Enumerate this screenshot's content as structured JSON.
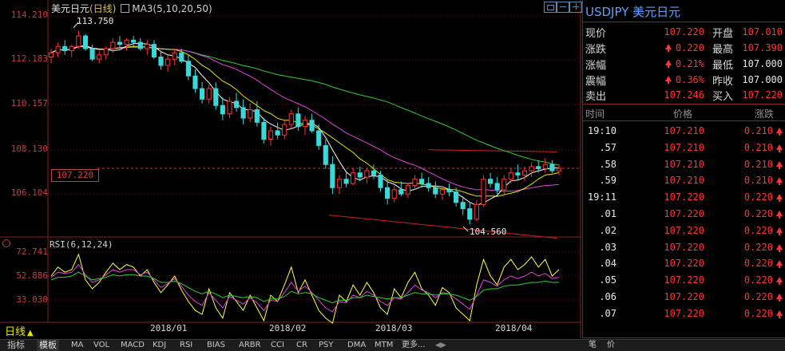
{
  "header": {
    "symbol": "美元日元",
    "period": "(日线)",
    "indicator": "MA3(5,10,20,50)"
  },
  "y_axis": {
    "labels": [
      "114.210",
      "112.183",
      "110.157",
      "108.130",
      "106.104"
    ],
    "rsi_labels": [
      "72.741",
      "52.886",
      "33.030"
    ]
  },
  "x_axis": {
    "labels": [
      "2018/01",
      "2018/02",
      "2018/03",
      "2018/04"
    ]
  },
  "annotations": {
    "high": "113.750",
    "low": "104.560",
    "current_price": "107.220"
  },
  "rsi": {
    "title": "RSI(6,12,24)"
  },
  "period_label": "日线",
  "toolbar": {
    "items": [
      "指标",
      "模板",
      "MA",
      "VOL",
      "MACD",
      "KDJ",
      "RSI",
      "BIAS",
      "ARBR",
      "CCI",
      "CR",
      "PSY",
      "DMA",
      "MTM",
      "更多..."
    ],
    "right_items": [
      "笔",
      "价"
    ]
  },
  "panel": {
    "title": "USDJPY 美元日元",
    "quote": {
      "last_label": "现价",
      "last": "107.220",
      "open_label": "开盘",
      "open": "107.010",
      "change_label": "涨跌",
      "change": "0.220",
      "high_label": "最高",
      "high": "107.390",
      "change_pct_label": "涨幅",
      "change_pct": "0.21%",
      "low_label": "最低",
      "low": "107.000",
      "amplitude_label": "震幅",
      "amplitude": "0.36%",
      "prev_close_label": "昨收",
      "prev_close": "107.000",
      "ask_label": "卖出",
      "ask": "107.246",
      "bid_label": "买入",
      "bid": "107.220"
    },
    "ticks_header": {
      "time": "时间",
      "price": "价格",
      "change": "涨跌"
    },
    "ticks": [
      {
        "time": "19:10",
        "price": "107.210",
        "change": "0.210"
      },
      {
        "time": ".57",
        "price": "107.210",
        "change": "0.210"
      },
      {
        "time": ".58",
        "price": "107.210",
        "change": "0.210"
      },
      {
        "time": ".59",
        "price": "107.210",
        "change": "0.210"
      },
      {
        "time": "19:11",
        "price": "107.220",
        "change": "0.220"
      },
      {
        "time": ".01",
        "price": "107.220",
        "change": "0.220"
      },
      {
        "time": ".02",
        "price": "107.220",
        "change": "0.220"
      },
      {
        "time": ".03",
        "price": "107.220",
        "change": "0.220"
      },
      {
        "time": ".04",
        "price": "107.220",
        "change": "0.220"
      },
      {
        "time": ".05",
        "price": "107.220",
        "change": "0.220"
      },
      {
        "time": ".06",
        "price": "107.220",
        "change": "0.220"
      },
      {
        "time": ".07",
        "price": "107.220",
        "change": "0.220"
      }
    ]
  },
  "colors": {
    "up": "#ff3434",
    "down": "#3ad8d8",
    "ma5": "#ffffff",
    "ma10": "#e8e800",
    "ma20": "#e040e0",
    "ma50": "#30d030",
    "background": "#000000"
  },
  "chart_data": {
    "type": "candlestick",
    "price_range": [
      104.0,
      114.6
    ],
    "rsi_range": [
      20,
      80
    ],
    "candles": [
      [
        112.5,
        112.9,
        112.2,
        112.7
      ],
      [
        112.7,
        113.2,
        112.5,
        113.0
      ],
      [
        113.0,
        113.3,
        112.6,
        112.8
      ],
      [
        112.8,
        113.1,
        112.5,
        113.0
      ],
      [
        113.0,
        113.75,
        112.9,
        113.5
      ],
      [
        113.5,
        113.6,
        112.8,
        112.9
      ],
      [
        112.9,
        113.1,
        112.3,
        112.4
      ],
      [
        112.4,
        112.8,
        112.2,
        112.6
      ],
      [
        112.6,
        113.0,
        112.4,
        112.9
      ],
      [
        112.9,
        113.4,
        112.7,
        113.2
      ],
      [
        113.2,
        113.5,
        112.9,
        113.1
      ],
      [
        113.1,
        113.4,
        112.8,
        113.3
      ],
      [
        113.3,
        113.5,
        113.0,
        113.2
      ],
      [
        113.2,
        113.4,
        112.8,
        112.9
      ],
      [
        112.9,
        113.3,
        112.6,
        113.1
      ],
      [
        113.1,
        113.3,
        112.4,
        112.5
      ],
      [
        112.5,
        112.8,
        111.9,
        112.1
      ],
      [
        112.1,
        112.6,
        111.8,
        112.4
      ],
      [
        112.4,
        112.9,
        112.1,
        112.7
      ],
      [
        112.7,
        112.9,
        112.2,
        112.3
      ],
      [
        112.3,
        112.6,
        111.4,
        111.6
      ],
      [
        111.6,
        111.9,
        110.8,
        111.0
      ],
      [
        111.0,
        111.3,
        110.3,
        110.5
      ],
      [
        110.5,
        111.2,
        110.3,
        111.0
      ],
      [
        111.0,
        111.3,
        110.0,
        110.2
      ],
      [
        110.2,
        110.6,
        109.5,
        109.8
      ],
      [
        109.8,
        110.6,
        109.6,
        110.4
      ],
      [
        110.4,
        110.8,
        109.9,
        110.1
      ],
      [
        110.1,
        110.5,
        109.3,
        109.6
      ],
      [
        109.6,
        110.3,
        109.4,
        110.0
      ],
      [
        110.0,
        110.4,
        109.2,
        109.4
      ],
      [
        109.4,
        109.6,
        108.4,
        108.6
      ],
      [
        108.6,
        109.2,
        108.3,
        109.0
      ],
      [
        109.0,
        109.4,
        108.6,
        108.8
      ],
      [
        108.8,
        109.5,
        108.6,
        109.3
      ],
      [
        109.3,
        110.0,
        109.1,
        109.8
      ],
      [
        109.8,
        110.1,
        109.0,
        109.2
      ],
      [
        109.2,
        109.7,
        108.8,
        109.5
      ],
      [
        109.5,
        109.8,
        108.9,
        109.0
      ],
      [
        109.0,
        109.3,
        108.1,
        108.3
      ],
      [
        108.3,
        108.6,
        107.2,
        107.4
      ],
      [
        107.4,
        107.8,
        106.0,
        106.3
      ],
      [
        106.3,
        106.9,
        106.0,
        106.7
      ],
      [
        106.7,
        107.1,
        106.3,
        106.5
      ],
      [
        106.5,
        107.2,
        106.4,
        107.0
      ],
      [
        107.0,
        107.3,
        106.6,
        106.8
      ],
      [
        106.8,
        107.2,
        106.5,
        107.1
      ],
      [
        107.1,
        107.4,
        106.7,
        106.9
      ],
      [
        106.9,
        107.1,
        106.1,
        106.3
      ],
      [
        106.3,
        106.7,
        105.5,
        105.8
      ],
      [
        105.8,
        106.4,
        105.6,
        106.2
      ],
      [
        106.2,
        106.6,
        105.9,
        106.0
      ],
      [
        106.0,
        106.5,
        105.8,
        106.4
      ],
      [
        106.4,
        106.9,
        106.2,
        106.7
      ],
      [
        106.7,
        107.0,
        106.3,
        106.5
      ],
      [
        106.5,
        106.8,
        106.1,
        106.3
      ],
      [
        106.3,
        106.6,
        105.8,
        106.0
      ],
      [
        106.0,
        106.4,
        105.7,
        106.2
      ],
      [
        106.2,
        106.5,
        105.9,
        106.1
      ],
      [
        106.1,
        106.3,
        105.4,
        105.6
      ],
      [
        105.6,
        105.9,
        105.0,
        105.3
      ],
      [
        105.3,
        105.6,
        104.56,
        104.8
      ],
      [
        104.8,
        105.7,
        104.7,
        105.5
      ],
      [
        105.5,
        106.9,
        105.4,
        106.7
      ],
      [
        106.7,
        107.0,
        106.3,
        106.5
      ],
      [
        106.5,
        106.8,
        106.0,
        106.2
      ],
      [
        106.2,
        106.9,
        106.0,
        106.7
      ],
      [
        106.7,
        107.2,
        106.5,
        107.0
      ],
      [
        107.0,
        107.4,
        106.7,
        106.9
      ],
      [
        106.9,
        107.3,
        106.6,
        107.1
      ],
      [
        107.1,
        107.5,
        106.8,
        107.3
      ],
      [
        107.3,
        107.6,
        107.0,
        107.2
      ],
      [
        107.2,
        107.7,
        107.0,
        107.4
      ],
      [
        107.4,
        107.6,
        107.0,
        107.1
      ],
      [
        107.1,
        107.4,
        106.9,
        107.22
      ]
    ],
    "rsi_series": [
      [
        55,
        62,
        58,
        60,
        72,
        52,
        45,
        50,
        58,
        65,
        60,
        64,
        62,
        55,
        60,
        50,
        42,
        48,
        55,
        44,
        35,
        28,
        25,
        45,
        30,
        22,
        42,
        35,
        28,
        40,
        30,
        20,
        40,
        35,
        48,
        62,
        42,
        52,
        40,
        28,
        22,
        18,
        40,
        35,
        48,
        40,
        50,
        42,
        30,
        25,
        45,
        38,
        50,
        58,
        45,
        40,
        32,
        46,
        42,
        30,
        25,
        20,
        48,
        68,
        55,
        48,
        62,
        68,
        60,
        64,
        70,
        62,
        68,
        55,
        60
      ],
      [
        54,
        58,
        57,
        58,
        64,
        56,
        50,
        52,
        56,
        60,
        58,
        60,
        60,
        56,
        58,
        52,
        46,
        49,
        53,
        47,
        40,
        35,
        32,
        42,
        36,
        30,
        39,
        36,
        33,
        38,
        34,
        28,
        36,
        35,
        42,
        50,
        43,
        47,
        42,
        36,
        30,
        27,
        35,
        34,
        40,
        38,
        43,
        40,
        35,
        32,
        38,
        37,
        42,
        48,
        44,
        42,
        38,
        42,
        41,
        37,
        33,
        29,
        40,
        52,
        50,
        47,
        52,
        55,
        53,
        55,
        58,
        55,
        57,
        53,
        54
      ],
      [
        52,
        54,
        54,
        55,
        58,
        55,
        52,
        53,
        54,
        56,
        55,
        56,
        56,
        55,
        55,
        53,
        50,
        50,
        51,
        49,
        46,
        43,
        41,
        43,
        41,
        38,
        40,
        39,
        38,
        39,
        38,
        35,
        37,
        37,
        39,
        43,
        41,
        42,
        41,
        38,
        36,
        34,
        36,
        36,
        38,
        38,
        40,
        39,
        38,
        37,
        38,
        38,
        40,
        42,
        41,
        41,
        40,
        41,
        41,
        40,
        38,
        36,
        39,
        44,
        45,
        45,
        47,
        48,
        48,
        49,
        50,
        50,
        51,
        50,
        50
      ]
    ],
    "ma_series": {
      "ma5_color": "#ffffff",
      "ma10_color": "#e8e800",
      "ma20_color": "#e040e0",
      "ma50_color": "#30d030"
    },
    "trendlines": [
      {
        "from": [
          55,
          108.1
        ],
        "to": [
          74,
          108.0
        ]
      },
      {
        "from": [
          44,
          105.0
        ],
        "to": [
          74,
          103.9
        ]
      }
    ]
  }
}
